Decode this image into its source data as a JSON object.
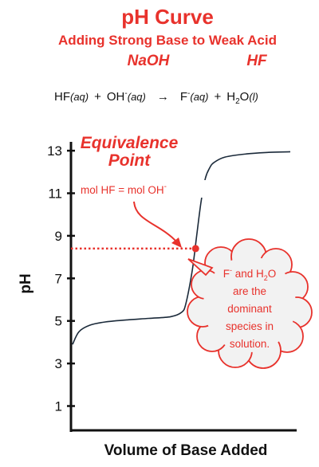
{
  "header": {
    "title": "pH Curve",
    "subtitle": "Adding Strong Base to Weak Acid",
    "base_formula": "NaOH",
    "acid_formula": "HF"
  },
  "equation": {
    "r1": "HF",
    "r1_state": "(aq)",
    "plus1": "+",
    "r2": "OH",
    "r2_charge": "-",
    "r2_state": "(aq)",
    "arrow": "→",
    "p1": "F",
    "p1_charge": "-",
    "p1_state": "(aq)",
    "plus2": "+",
    "p2_a": "H",
    "p2_sub": "2",
    "p2_b": "O",
    "p2_state": "(l)"
  },
  "annotations": {
    "equivalence_line1": "Equivalence",
    "equivalence_line2": "Point",
    "mol_text": "mol HF = mol OH",
    "mol_charge": "-",
    "cloud_l1_a": "F",
    "cloud_l1_sup": "-",
    "cloud_l1_b": " and H",
    "cloud_l1_sub": "2",
    "cloud_l1_c": "O",
    "cloud_l2": "are the",
    "cloud_l3": "dominant",
    "cloud_l4": "species in",
    "cloud_l5": "solution."
  },
  "colors": {
    "accent": "#e8322c",
    "curve": "#1b2a3a",
    "axis": "#111111"
  },
  "chart_data": {
    "type": "line",
    "xlabel": "Volume of Base Added",
    "ylabel": "pH",
    "ylim": [
      0.5,
      14
    ],
    "y_ticks": [
      1,
      3,
      5,
      7,
      9,
      11,
      13
    ],
    "x_ticks_shown": false,
    "grid": false,
    "series": [
      {
        "x": [
          0,
          0.03,
          0.08,
          0.15,
          0.25,
          0.35,
          0.45,
          0.5,
          0.52,
          0.55,
          0.57,
          0.59,
          0.61,
          0.63,
          0.65,
          0.7,
          0.8,
          0.9,
          1.0
        ],
        "y": [
          3.9,
          4.5,
          4.8,
          4.95,
          5.05,
          5.12,
          5.2,
          5.4,
          5.8,
          7.4,
          9.0,
          10.6,
          11.7,
          12.2,
          12.45,
          12.7,
          12.85,
          12.92,
          12.95
        ]
      }
    ],
    "equivalence_point": {
      "x": 0.565,
      "y": 8.4
    }
  }
}
